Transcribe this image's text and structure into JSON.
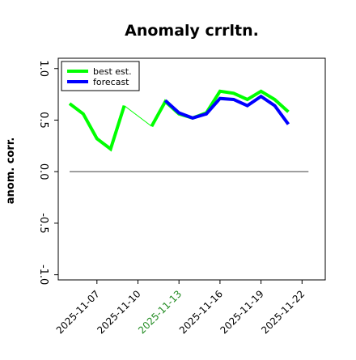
{
  "chart_data": {
    "type": "line",
    "title": "Anomaly crrltn.",
    "xlabel": "",
    "ylabel": "anom. corr.",
    "x": [
      "2025-11-05",
      "2025-11-06",
      "2025-11-07",
      "2025-11-08",
      "2025-11-09",
      "2025-11-10",
      "2025-11-11",
      "2025-11-12",
      "2025-11-13",
      "2025-11-14",
      "2025-11-15",
      "2025-11-16",
      "2025-11-17",
      "2025-11-18",
      "2025-11-19",
      "2025-11-20",
      "2025-11-21",
      "2025-11-22"
    ],
    "x_tick_labels": [
      "2025-11-07",
      "2025-11-10",
      "2025-11-13",
      "2025-11-16",
      "2025-11-19",
      "2025-11-22"
    ],
    "highlighted_tick": "2025-11-13",
    "highlight_color": "#228b22",
    "ylim": [
      -1.05,
      1.1
    ],
    "yticks": [
      -1.0,
      -0.5,
      0.0,
      0.5,
      1.0
    ],
    "zero_line": 0.0,
    "grid": false,
    "legend_position": "top-left",
    "series": [
      {
        "name": "best est.",
        "color": "#00ff00",
        "values": [
          0.66,
          0.56,
          0.32,
          0.22,
          0.64,
          null,
          0.44,
          0.68,
          0.56,
          0.52,
          0.57,
          0.78,
          0.76,
          0.7,
          0.78,
          0.7,
          0.58,
          null
        ],
        "connector": {
          "from_index": 4,
          "to_index": 6
        }
      },
      {
        "name": "forecast",
        "color": "#0000ff",
        "values": [
          null,
          null,
          null,
          null,
          null,
          null,
          null,
          0.69,
          0.57,
          0.52,
          0.56,
          0.71,
          0.7,
          0.64,
          0.73,
          0.64,
          0.46,
          null
        ]
      }
    ]
  }
}
